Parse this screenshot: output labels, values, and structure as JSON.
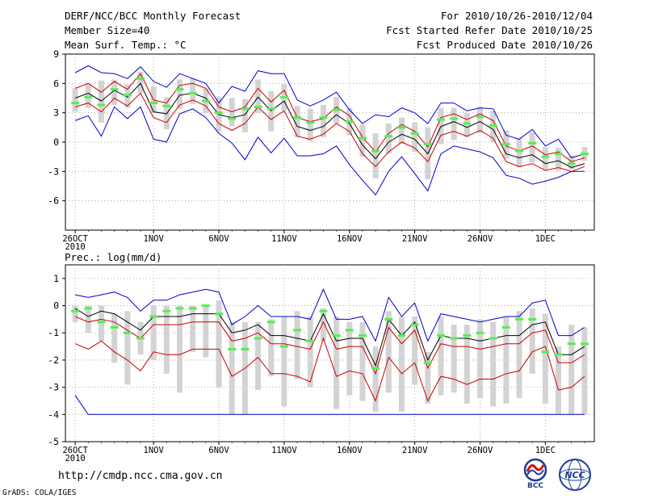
{
  "header": {
    "title_left": "DERF/NCC/BCC Monthly Forecast",
    "member_size": "Member Size=40",
    "variable": "Mean Surf. Temp.: °C",
    "period": "For 2010/10/26-2010/12/04",
    "started": "Fcst Started Refer Date 2010/10/25",
    "produced": "Fcst Produced Date 2010/10/26"
  },
  "footer": {
    "url": "http://cmdp.ncc.cma.gov.cn",
    "grads": "GrADS: COLA/IGES",
    "logo_bcc": "BCC",
    "logo_ncc": "NCC"
  },
  "colors": {
    "frame": "#000000",
    "ensemble_mean": "#000000",
    "envelope": "#0000cc",
    "inner_range": "#cc0000",
    "median_mark": "#55ee55",
    "box": "#d3d3d3",
    "grid": "#999999"
  },
  "chart_data": [
    {
      "type": "box-ensemble",
      "title": "Mean Surf. Temp.: °C",
      "xlabel": "",
      "ylabel": "°C",
      "ylim": [
        -9,
        9
      ],
      "yticks": [
        9,
        6,
        3,
        0,
        -3,
        -6
      ],
      "x_tick_labels": [
        "26OCT",
        "1NOV",
        "6NOV",
        "11NOV",
        "16NOV",
        "21NOV",
        "26NOV",
        "1DEC"
      ],
      "x_tick_day_index": [
        0,
        6,
        11,
        16,
        21,
        26,
        31,
        36
      ],
      "year_label": "2010",
      "days": 40,
      "series": [
        {
          "name": "ensemble mean",
          "values": [
            4.5,
            5.0,
            4.2,
            5.3,
            4.6,
            6.0,
            3.1,
            2.9,
            4.8,
            5.0,
            4.5,
            2.8,
            2.5,
            2.8,
            4.6,
            3.2,
            4.2,
            1.6,
            1.2,
            1.6,
            2.8,
            1.9,
            -0.3,
            -1.7,
            0.0,
            0.8,
            0.3,
            -1.2,
            1.6,
            2.1,
            1.5,
            2.1,
            1.3,
            -1.2,
            -1.6,
            -1.3,
            -2.2,
            -1.9,
            -2.6,
            -2.2
          ]
        },
        {
          "name": "upper envelope",
          "values": [
            7.1,
            7.8,
            7.1,
            7.0,
            6.5,
            7.7,
            6.2,
            5.6,
            7.0,
            6.5,
            6.0,
            4.0,
            5.7,
            5.2,
            7.3,
            7.0,
            7.0,
            4.3,
            3.7,
            4.3,
            5.1,
            3.3,
            1.9,
            2.8,
            2.6,
            3.5,
            3.0,
            1.9,
            4.0,
            4.0,
            3.2,
            3.5,
            3.4,
            0.7,
            0.3,
            1.3,
            -0.4,
            0.3,
            -1.6,
            -1.2
          ]
        },
        {
          "name": "lower envelope",
          "values": [
            2.2,
            2.7,
            0.6,
            3.6,
            2.4,
            3.6,
            0.3,
            0.0,
            2.9,
            3.4,
            2.5,
            0.9,
            -0.1,
            -1.8,
            0.5,
            -1.1,
            0.4,
            -1.4,
            -1.4,
            -1.2,
            -0.4,
            -2.3,
            -3.9,
            -5.4,
            -3.0,
            -1.5,
            -3.2,
            -5.0,
            -1.2,
            -0.4,
            -0.7,
            -1.0,
            -1.6,
            -3.4,
            -3.7,
            -4.3,
            -4.0,
            -3.6,
            -3.0,
            -3.0
          ]
        },
        {
          "name": "upper inner",
          "values": [
            5.5,
            6.0,
            5.1,
            6.2,
            5.4,
            7.0,
            4.3,
            4.0,
            5.8,
            6.0,
            5.5,
            3.6,
            3.1,
            3.6,
            5.5,
            4.1,
            5.3,
            2.5,
            2.1,
            2.4,
            3.6,
            2.7,
            0.5,
            -1.0,
            0.9,
            1.8,
            1.1,
            -0.5,
            2.5,
            2.9,
            2.3,
            2.9,
            2.2,
            -0.4,
            -0.9,
            -0.4,
            -1.3,
            -1.0,
            -2.0,
            -1.6
          ]
        },
        {
          "name": "lower inner",
          "values": [
            3.6,
            4.0,
            3.1,
            4.5,
            3.7,
            5.0,
            2.5,
            2.0,
            3.8,
            4.3,
            3.7,
            1.9,
            1.2,
            1.9,
            3.6,
            2.3,
            3.2,
            0.6,
            0.3,
            0.8,
            1.9,
            1.1,
            -1.2,
            -2.5,
            -1.0,
            0.0,
            -0.6,
            -2.0,
            0.7,
            1.1,
            0.6,
            1.2,
            0.4,
            -2.0,
            -2.5,
            -2.2,
            -2.9,
            -2.6,
            -3.0,
            -2.5
          ]
        }
      ],
      "median": [
        4.0,
        4.6,
        3.8,
        5.4,
        4.8,
        6.5,
        4.0,
        3.7,
        5.4,
        5.0,
        4.2,
        3.0,
        2.4,
        3.4,
        3.6,
        3.4,
        4.6,
        2.5,
        2.0,
        2.5,
        3.3,
        2.1,
        0.4,
        -0.9,
        0.6,
        1.5,
        0.9,
        -0.2,
        2.3,
        2.4,
        1.9,
        2.6,
        1.7,
        -0.2,
        -0.9,
        -0.1,
        -1.5,
        -1.2,
        -2.2,
        -1.2
      ],
      "box_high": [
        5.5,
        6.0,
        6.3,
        6.4,
        5.9,
        7.2,
        5.7,
        4.6,
        6.4,
        6.5,
        5.5,
        4.6,
        4.5,
        4.4,
        6.4,
        5.2,
        5.9,
        3.7,
        3.4,
        3.8,
        4.6,
        3.5,
        1.8,
        0.9,
        1.9,
        2.5,
        2.0,
        1.5,
        3.5,
        3.5,
        3.0,
        3.6,
        3.2,
        1.2,
        0.3,
        1.0,
        -0.5,
        -0.6,
        -1.4,
        -0.5
      ],
      "box_low": [
        3.1,
        3.5,
        2.0,
        3.8,
        3.5,
        5.0,
        3.0,
        1.3,
        3.4,
        3.9,
        3.0,
        1.1,
        1.6,
        1.0,
        3.0,
        1.1,
        3.2,
        0.5,
        0.1,
        0.5,
        1.9,
        0.7,
        -1.5,
        -3.7,
        -1.2,
        -0.2,
        -1.0,
        -3.8,
        -0.2,
        0.2,
        0.5,
        0.9,
        0.0,
        -1.7,
        -2.6,
        -2.1,
        -2.8,
        -2.9,
        -2.8,
        -1.9
      ]
    },
    {
      "type": "box-ensemble",
      "title": "Prec.: log(mm/d)",
      "xlabel": "",
      "ylabel": "log(mm/d)",
      "ylim": [
        -5,
        1.5
      ],
      "yticks": [
        1,
        0,
        -1,
        -2,
        -3,
        -4,
        -5
      ],
      "x_tick_labels": [
        "26OCT",
        "1NOV",
        "6NOV",
        "11NOV",
        "16NOV",
        "21NOV",
        "26NOV",
        "1DEC"
      ],
      "x_tick_day_index": [
        0,
        6,
        11,
        16,
        21,
        26,
        31,
        36
      ],
      "year_label": "2010",
      "days": 40,
      "series": [
        {
          "name": "ensemble mean",
          "values": [
            -0.1,
            -0.4,
            -0.2,
            -0.3,
            -0.6,
            -0.9,
            -0.4,
            -0.4,
            -0.4,
            -0.3,
            -0.3,
            -0.3,
            -1.0,
            -0.9,
            -0.7,
            -1.1,
            -1.1,
            -1.2,
            -1.3,
            -0.3,
            -1.3,
            -1.2,
            -1.2,
            -2.2,
            -0.5,
            -1.1,
            -0.6,
            -2.0,
            -1.1,
            -1.2,
            -1.2,
            -1.3,
            -1.2,
            -1.1,
            -1.1,
            -0.7,
            -0.6,
            -1.8,
            -1.8,
            -1.5
          ]
        },
        {
          "name": "upper envelope",
          "values": [
            0.4,
            0.3,
            0.4,
            0.5,
            0.3,
            -0.2,
            0.2,
            0.2,
            0.4,
            0.5,
            0.6,
            0.5,
            -0.7,
            -0.4,
            0.0,
            -0.4,
            -0.4,
            -0.4,
            -0.5,
            0.6,
            -0.5,
            -0.5,
            -0.4,
            -1.3,
            0.3,
            -0.4,
            0.1,
            -1.3,
            -0.3,
            -0.4,
            -0.5,
            -0.6,
            -0.5,
            -0.4,
            -0.4,
            0.1,
            0.2,
            -1.1,
            -1.1,
            -0.8
          ]
        },
        {
          "name": "lower envelope",
          "values": [
            -3.3,
            -4.0,
            -4.0,
            -4.0,
            -4.0,
            -4.0,
            -4.0,
            -4.0,
            -4.0,
            -4.0,
            -4.0,
            -4.0,
            -4.0,
            -4.0,
            -4.0,
            -4.0,
            -4.0,
            -4.0,
            -4.0,
            -4.0,
            -4.0,
            -4.0,
            -4.0,
            -4.0,
            -4.0,
            -4.0,
            -4.0,
            -4.0,
            -4.0,
            -4.0,
            -4.0,
            -4.0,
            -4.0,
            -4.0,
            -4.0,
            -4.0,
            -4.0,
            -4.0,
            -4.0,
            -4.0
          ]
        },
        {
          "name": "upper inner",
          "values": [
            -0.4,
            -0.6,
            -0.5,
            -0.6,
            -0.9,
            -1.2,
            -0.7,
            -0.7,
            -0.7,
            -0.6,
            -0.6,
            -0.6,
            -1.3,
            -1.2,
            -1.0,
            -1.4,
            -1.4,
            -1.5,
            -1.6,
            -0.6,
            -1.6,
            -1.5,
            -1.5,
            -2.5,
            -0.8,
            -1.4,
            -0.9,
            -2.3,
            -1.4,
            -1.5,
            -1.5,
            -1.6,
            -1.5,
            -1.4,
            -1.4,
            -1.0,
            -0.9,
            -2.1,
            -2.1,
            -1.8
          ]
        },
        {
          "name": "lower inner",
          "values": [
            -1.4,
            -1.6,
            -1.3,
            -1.7,
            -2.0,
            -2.4,
            -1.7,
            -1.8,
            -1.8,
            -1.6,
            -1.6,
            -1.6,
            -2.6,
            -2.3,
            -1.9,
            -2.5,
            -2.5,
            -2.6,
            -2.8,
            -1.2,
            -2.6,
            -2.4,
            -2.5,
            -3.5,
            -1.9,
            -2.5,
            -2.1,
            -3.5,
            -2.6,
            -2.7,
            -2.9,
            -2.7,
            -2.7,
            -2.5,
            -2.4,
            -1.7,
            -1.5,
            -3.1,
            -3.0,
            -2.6
          ]
        }
      ],
      "median": [
        -0.2,
        -0.1,
        -0.6,
        -0.8,
        -1.0,
        -1.2,
        -0.4,
        -0.2,
        -0.1,
        -0.1,
        0.0,
        -0.3,
        -1.6,
        -1.6,
        -1.2,
        -0.6,
        -1.5,
        -0.9,
        -1.3,
        -0.2,
        -1.1,
        -0.9,
        -1.1,
        -2.3,
        -0.5,
        -1.1,
        -0.7,
        -2.1,
        -1.1,
        -1.2,
        -1.1,
        -1.0,
        -1.2,
        -0.8,
        -0.5,
        -0.5,
        -1.7,
        -1.8,
        -1.4,
        -1.4
      ],
      "box_high": [
        0.0,
        0.0,
        0.0,
        -0.3,
        -0.2,
        -0.6,
        0.0,
        0.0,
        0.0,
        0.0,
        0.0,
        0.2,
        -0.6,
        -0.6,
        -0.6,
        -0.5,
        -0.4,
        -0.2,
        -0.4,
        -0.1,
        -0.4,
        -0.6,
        -0.6,
        -1.5,
        -0.2,
        -0.4,
        -0.4,
        -1.7,
        -0.4,
        -0.7,
        -0.7,
        -0.5,
        -0.6,
        -0.4,
        -0.2,
        -0.1,
        -0.3,
        -1.5,
        -0.7,
        -0.8
      ],
      "box_low": [
        -0.6,
        -1.0,
        -1.3,
        -2.1,
        -2.9,
        -1.8,
        -2.0,
        -2.5,
        -3.2,
        -1.7,
        -1.9,
        -3.0,
        -4.0,
        -4.0,
        -3.1,
        -2.6,
        -3.7,
        -2.7,
        -3.0,
        -1.3,
        -3.8,
        -3.3,
        -3.5,
        -3.9,
        -3.2,
        -3.9,
        -2.9,
        -3.6,
        -3.3,
        -3.2,
        -3.6,
        -3.4,
        -3.7,
        -3.6,
        -3.4,
        -2.5,
        -3.6,
        -4.0,
        -4.0,
        -4.0
      ]
    }
  ]
}
